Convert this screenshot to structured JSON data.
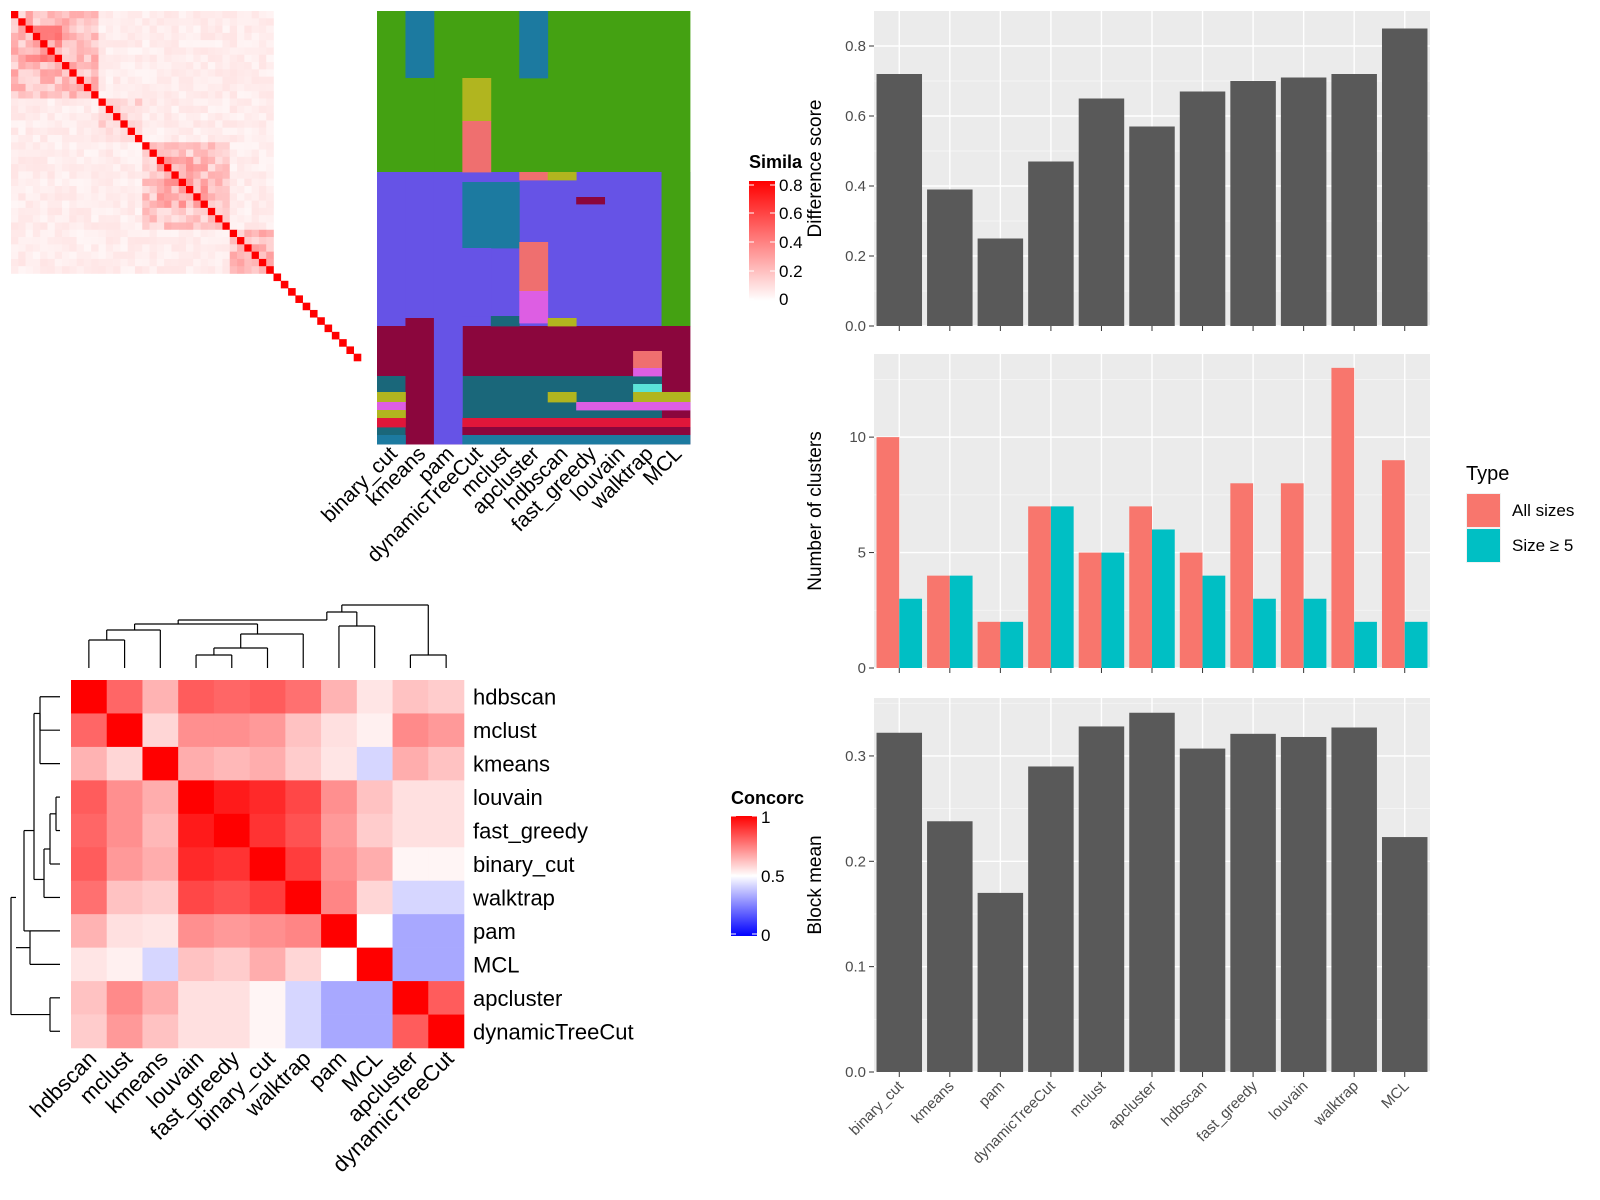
{
  "chart_data": [
    {
      "id": "similarity_heatmap",
      "type": "heatmap",
      "legend_title": "Simila",
      "legend_ticks": [
        "0",
        "0.2",
        "0.4",
        "0.6",
        "0.8"
      ],
      "blocks": [
        {
          "start": 0,
          "end": 12,
          "level": 0.22
        },
        {
          "start": 2,
          "end": 7,
          "level": 0.32
        },
        {
          "start": 12,
          "end": 18,
          "level": 0.14
        },
        {
          "start": 18,
          "end": 30,
          "level": 0.18
        },
        {
          "start": 20,
          "end": 27,
          "level": 0.26
        },
        {
          "start": 30,
          "end": 36,
          "level": 0.22
        },
        {
          "start": 36,
          "end": 48,
          "level": 0.0
        }
      ],
      "n_items": 48,
      "colors": {
        "low": "#ffffff",
        "high": "#ff0000"
      }
    },
    {
      "id": "cluster_assignment",
      "type": "heatmap",
      "methods": [
        "binary_cut",
        "kmeans",
        "pam",
        "dynamicTreeCut",
        "mclust",
        "apcluster",
        "hdbscan",
        "fast_greedy",
        "louvain",
        "walktrap",
        "MCL"
      ]
    },
    {
      "id": "concordance_heatmap",
      "type": "heatmap",
      "legend_title": "Concorc",
      "legend_ticks": [
        "0",
        "0.5",
        "1"
      ],
      "order": [
        "hdbscan",
        "mclust",
        "kmeans",
        "louvain",
        "fast_greedy",
        "binary_cut",
        "walktrap",
        "pam",
        "MCL",
        "apcluster",
        "dynamicTreeCut"
      ],
      "matrix": [
        [
          1.0,
          0.8,
          0.65,
          0.82,
          0.8,
          0.82,
          0.78,
          0.65,
          0.55,
          0.62,
          0.6
        ],
        [
          0.8,
          1.0,
          0.58,
          0.72,
          0.72,
          0.7,
          0.62,
          0.56,
          0.53,
          0.73,
          0.7
        ],
        [
          0.65,
          0.58,
          1.0,
          0.66,
          0.64,
          0.66,
          0.6,
          0.55,
          0.42,
          0.66,
          0.62
        ],
        [
          0.82,
          0.72,
          0.66,
          1.0,
          0.95,
          0.92,
          0.86,
          0.72,
          0.62,
          0.56,
          0.56
        ],
        [
          0.8,
          0.72,
          0.64,
          0.95,
          1.0,
          0.9,
          0.84,
          0.7,
          0.6,
          0.56,
          0.56
        ],
        [
          0.82,
          0.7,
          0.66,
          0.92,
          0.9,
          1.0,
          0.88,
          0.72,
          0.66,
          0.52,
          0.52
        ],
        [
          0.78,
          0.62,
          0.6,
          0.86,
          0.84,
          0.88,
          1.0,
          0.74,
          0.58,
          0.42,
          0.42
        ],
        [
          0.65,
          0.56,
          0.55,
          0.72,
          0.7,
          0.72,
          0.74,
          1.0,
          0.5,
          0.33,
          0.33
        ],
        [
          0.55,
          0.53,
          0.42,
          0.62,
          0.6,
          0.66,
          0.58,
          0.5,
          1.0,
          0.33,
          0.33
        ],
        [
          0.62,
          0.73,
          0.66,
          0.56,
          0.56,
          0.52,
          0.42,
          0.33,
          0.33,
          1.0,
          0.82
        ],
        [
          0.6,
          0.7,
          0.62,
          0.56,
          0.56,
          0.52,
          0.42,
          0.33,
          0.33,
          0.82,
          1.0
        ]
      ],
      "colors": {
        "low": "#0000ff",
        "mid": "#ffffff",
        "high": "#ff0000"
      }
    },
    {
      "id": "difference_score",
      "type": "bar",
      "categories": [
        "binary_cut",
        "kmeans",
        "pam",
        "dynamicTreeCut",
        "mclust",
        "apcluster",
        "hdbscan",
        "fast_greedy",
        "louvain",
        "walktrap",
        "MCL"
      ],
      "values": [
        0.72,
        0.39,
        0.25,
        0.47,
        0.65,
        0.57,
        0.67,
        0.7,
        0.71,
        0.72,
        0.85
      ],
      "ylabel": "Difference score",
      "ylim": [
        0,
        0.9
      ],
      "yticks": [
        0.0,
        0.2,
        0.4,
        0.6,
        0.8
      ],
      "ytick_labels": [
        "0.0",
        "0.2",
        "0.4",
        "0.6",
        "0.8"
      ],
      "bar_color": "#595959",
      "panel_bg": "#ebebeb"
    },
    {
      "id": "number_of_clusters",
      "type": "bar",
      "categories": [
        "binary_cut",
        "kmeans",
        "pam",
        "dynamicTreeCut",
        "mclust",
        "apcluster",
        "hdbscan",
        "fast_greedy",
        "louvain",
        "walktrap",
        "MCL"
      ],
      "series": [
        {
          "name": "All sizes",
          "color": "#f8766d",
          "values": [
            10,
            4,
            2,
            7,
            5,
            7,
            5,
            8,
            8,
            13,
            9
          ]
        },
        {
          "name": "Size ≥ 5",
          "color": "#00bfc4",
          "values": [
            3,
            4,
            2,
            7,
            5,
            6,
            4,
            3,
            3,
            2,
            2
          ]
        }
      ],
      "ylabel": "Number of clusters",
      "ylim": [
        0,
        13.6
      ],
      "yticks": [
        0,
        5,
        10
      ],
      "ytick_labels": [
        "0",
        "5",
        "10"
      ],
      "legend_title": "Type",
      "legend_position": "right",
      "panel_bg": "#ebebeb"
    },
    {
      "id": "block_mean",
      "type": "bar",
      "categories": [
        "binary_cut",
        "kmeans",
        "pam",
        "dynamicTreeCut",
        "mclust",
        "apcluster",
        "hdbscan",
        "fast_greedy",
        "louvain",
        "walktrap",
        "MCL"
      ],
      "values": [
        0.322,
        0.238,
        0.17,
        0.29,
        0.328,
        0.341,
        0.307,
        0.321,
        0.318,
        0.327,
        0.223
      ],
      "ylabel": "Block mean",
      "ylim": [
        0,
        0.355
      ],
      "yticks": [
        0.0,
        0.1,
        0.2,
        0.3
      ],
      "ytick_labels": [
        "0.0",
        "0.1",
        "0.2",
        "0.3"
      ],
      "bar_color": "#595959",
      "panel_bg": "#ebebeb"
    }
  ]
}
